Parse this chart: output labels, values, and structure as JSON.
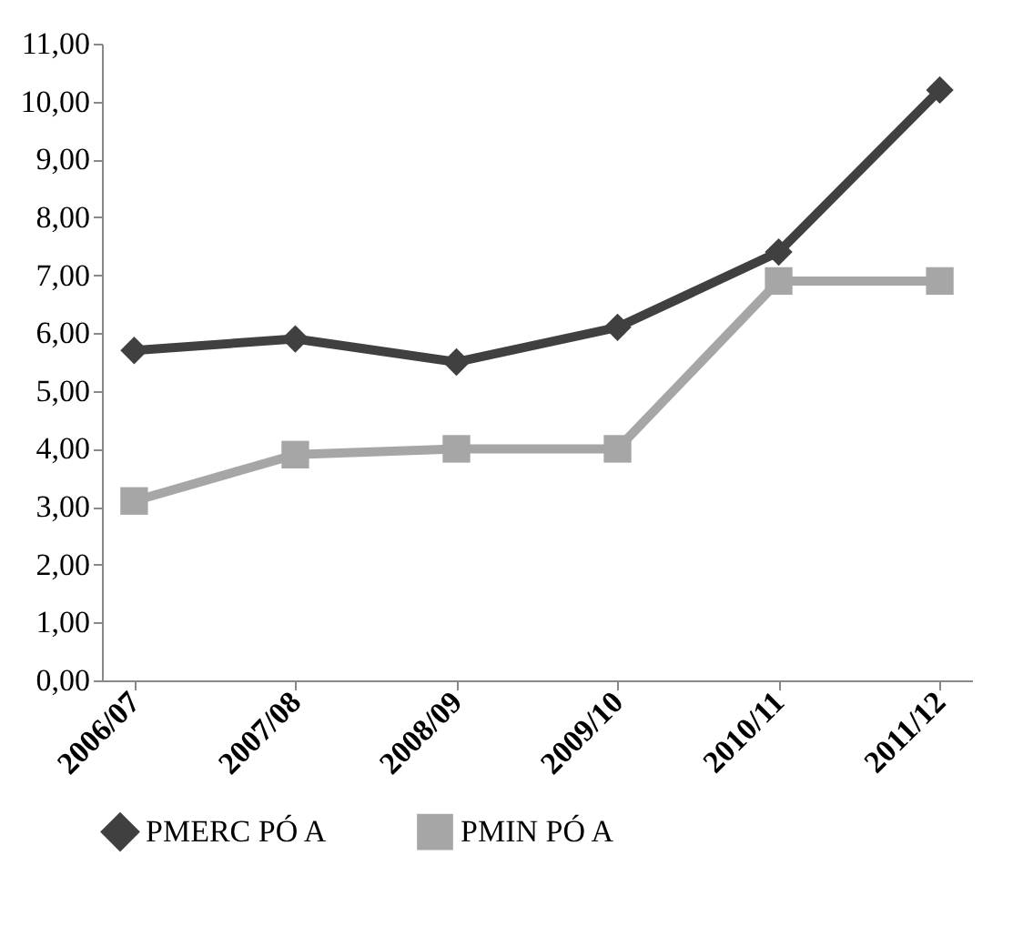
{
  "chart_data": {
    "type": "line",
    "categories": [
      "2006/07",
      "2007/08",
      "2008/09",
      "2009/10",
      "2010/11",
      "2011/12"
    ],
    "series": [
      {
        "name": "PMERC PÓ A",
        "color": "#404040",
        "marker": "diamond",
        "values": [
          5.7,
          5.9,
          5.5,
          6.1,
          7.4,
          10.2
        ]
      },
      {
        "name": "PMIN PÓ A",
        "color": "#a6a6a6",
        "marker": "square",
        "values": [
          3.1,
          3.9,
          4.0,
          4.0,
          6.9,
          6.9
        ]
      }
    ],
    "ylim": [
      0,
      11
    ],
    "yticks": [
      {
        "value": 0,
        "label": "0,00"
      },
      {
        "value": 1,
        "label": "1,00"
      },
      {
        "value": 2,
        "label": "2,00"
      },
      {
        "value": 3,
        "label": "3,00"
      },
      {
        "value": 4,
        "label": "4,00"
      },
      {
        "value": 5,
        "label": "5,00"
      },
      {
        "value": 6,
        "label": "6,00"
      },
      {
        "value": 7,
        "label": "7,00"
      },
      {
        "value": 8,
        "label": "8,00"
      },
      {
        "value": 9,
        "label": "9,00"
      },
      {
        "value": 10,
        "label": "10,00"
      },
      {
        "value": 11,
        "label": "11,00"
      }
    ],
    "grid": false,
    "legend": "bottom",
    "line_style": "solid"
  }
}
